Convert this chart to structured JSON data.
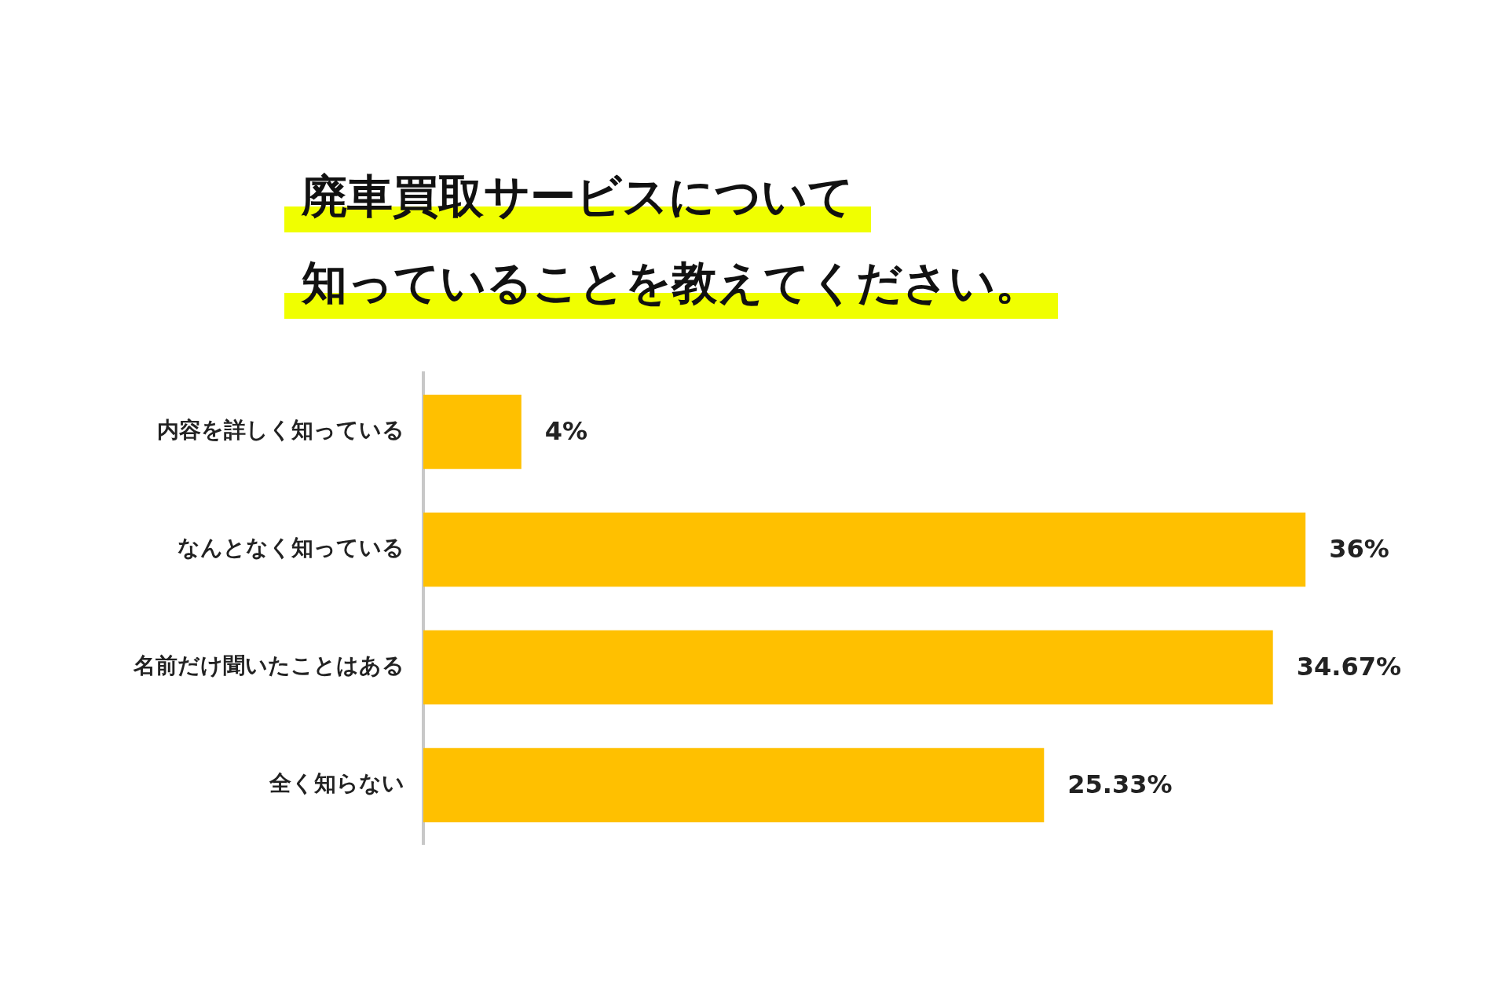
{
  "chart_data": {
    "type": "bar",
    "orientation": "horizontal",
    "title": "廃車買取サービスについて知っていることを教えてください。",
    "categories": [
      "内容を詳しく知っている",
      "なんとなく知っている",
      "名前だけ聞いたことはある",
      "全く知らない"
    ],
    "values": [
      4,
      36,
      34.67,
      25.33
    ],
    "value_labels": [
      "4%",
      "36%",
      "34.67%",
      "25.33%"
    ],
    "color": "#ffc000",
    "grid": false,
    "legend": false,
    "tick_labels": "y"
  }
}
